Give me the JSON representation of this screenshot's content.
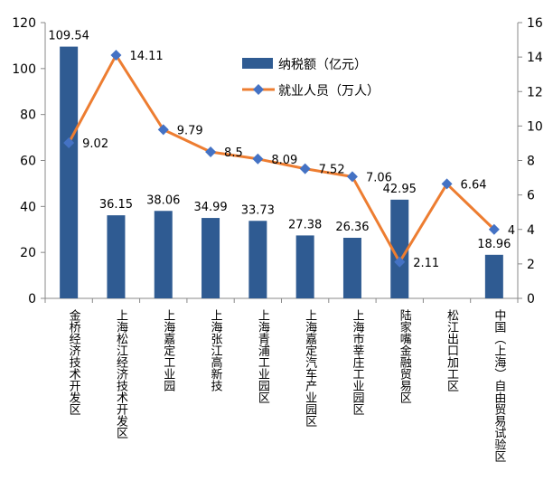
{
  "chart_data": {
    "type": "bar",
    "title": "",
    "categories": [
      "金桥经济技术开发区",
      "上海松江经济技术开发区",
      "上海嘉定工业园",
      "上海张江高新技",
      "上海青浦工业园区",
      "上海嘉定汽车产业园区",
      "上海市莘庄工业园区",
      "陆家嘴金融贸易区",
      "松江出口加工区",
      "中国（上海）自由贸易试验区"
    ],
    "series": [
      {
        "name": "纳税额（亿元）",
        "type": "bar",
        "axis": "left",
        "color": "#2f5b92",
        "values": [
          109.54,
          36.15,
          38.06,
          34.99,
          33.73,
          27.38,
          26.36,
          42.95,
          null,
          18.96
        ],
        "labels": [
          "109.54",
          "36.15",
          "38.06",
          "34.99",
          "33.73",
          "27.38",
          "26.36",
          "42.95",
          "",
          "18.96"
        ]
      },
      {
        "name": "就业人员（万人）",
        "type": "line",
        "axis": "right",
        "color": "#ed7d31",
        "marker_color": "#4472c4",
        "values": [
          9.02,
          14.11,
          9.79,
          8.5,
          8.09,
          7.52,
          7.06,
          2.11,
          6.64,
          4
        ],
        "labels": [
          "9.02",
          "14.11",
          "9.79",
          "8.5",
          "8.09",
          "7.52",
          "7.06",
          "2.11",
          "6.64",
          "4"
        ]
      }
    ],
    "y_left": {
      "min": 0,
      "max": 120,
      "ticks": [
        "0",
        "20",
        "40",
        "60",
        "80",
        "100",
        "120"
      ]
    },
    "y_right": {
      "min": 0,
      "max": 16,
      "ticks": [
        "0",
        "2",
        "4",
        "6",
        "8",
        "10",
        "12",
        "14",
        "16"
      ]
    },
    "grid": false,
    "legend_position": "top-right"
  }
}
